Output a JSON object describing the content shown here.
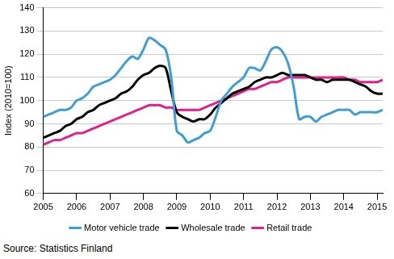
{
  "chart_data": {
    "type": "line",
    "y_label": "Index (2010=100)",
    "source": "Source: Statistics Finland",
    "categories": [
      "2005",
      null,
      null,
      null,
      null,
      null,
      "2006",
      null,
      null,
      null,
      null,
      null,
      "2007",
      null,
      null,
      null,
      null,
      null,
      "2008",
      null,
      null,
      null,
      null,
      null,
      "2009",
      null,
      null,
      null,
      null,
      null,
      "2010",
      null,
      null,
      null,
      null,
      null,
      "2011",
      null,
      null,
      null,
      null,
      null,
      "2012",
      null,
      null,
      null,
      null,
      null,
      "2013",
      null,
      null,
      null,
      null,
      null,
      "2014",
      null,
      null,
      null,
      null,
      null,
      "2015",
      null
    ],
    "series": [
      {
        "name": "Motor vehicle trade",
        "color": "#3d9dd8",
        "values": [
          93,
          94,
          95,
          96,
          96,
          97,
          100,
          101,
          103,
          106,
          107,
          108,
          109,
          111,
          114,
          117,
          119,
          118,
          122,
          127,
          126,
          124,
          122,
          110,
          87,
          85,
          82,
          83,
          84,
          86,
          87,
          93,
          100,
          103,
          106,
          108,
          110,
          114,
          114,
          113,
          117,
          122,
          123,
          121,
          116,
          106,
          92,
          93,
          93,
          91,
          93,
          94,
          95,
          96,
          96,
          96,
          94,
          95,
          95,
          95,
          95,
          96
        ]
      },
      {
        "name": "Wholesale trade",
        "color": "#000000",
        "values": [
          84,
          85,
          86,
          87,
          89,
          90,
          92,
          93,
          95,
          96,
          98,
          99,
          100,
          101,
          103,
          104,
          106,
          109,
          111,
          112,
          114,
          115,
          114,
          104,
          95,
          93,
          92,
          91,
          92,
          92,
          94,
          97,
          99,
          101,
          103,
          104,
          105,
          106,
          108,
          109,
          110,
          110,
          111,
          112,
          111,
          111,
          111,
          111,
          110,
          109,
          109,
          108,
          109,
          109,
          109,
          109,
          108,
          107,
          106,
          104,
          103,
          103
        ]
      },
      {
        "name": "Retail trade",
        "color": "#e0218a",
        "values": [
          81,
          82,
          83,
          83,
          84,
          85,
          86,
          86,
          87,
          88,
          89,
          90,
          91,
          92,
          93,
          94,
          95,
          96,
          97,
          98,
          98,
          98,
          97,
          97,
          96,
          96,
          96,
          96,
          96,
          97,
          98,
          99,
          100,
          101,
          102,
          103,
          104,
          105,
          105,
          106,
          107,
          108,
          108,
          109,
          110,
          110,
          110,
          110,
          110,
          110,
          110,
          110,
          110,
          110,
          110,
          109,
          109,
          108,
          108,
          108,
          108,
          109
        ]
      }
    ],
    "ylim": [
      60,
      140
    ],
    "yticks": [
      60,
      70,
      80,
      90,
      100,
      110,
      120,
      130,
      140
    ],
    "grid": true,
    "legend": "bottom"
  }
}
